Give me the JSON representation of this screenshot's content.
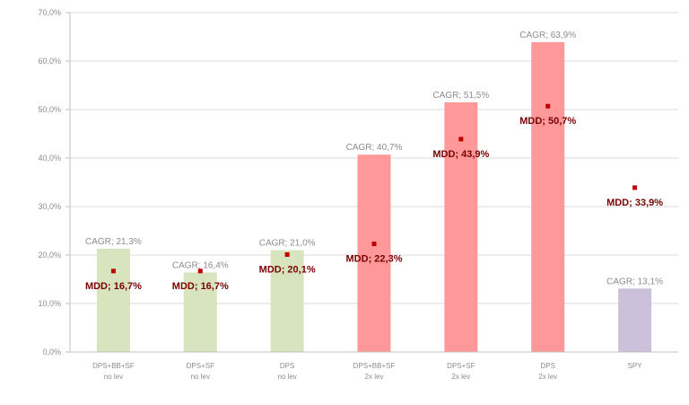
{
  "chart_data": {
    "type": "bar",
    "title": "",
    "xlabel": "",
    "ylabel": "",
    "ylim": [
      0,
      70
    ],
    "y_ticks": [
      "0,0%",
      "10,0%",
      "20,0%",
      "30,0%",
      "40,0%",
      "50,0%",
      "60,0%",
      "70,0%"
    ],
    "y_tick_values": [
      0,
      10,
      20,
      30,
      40,
      50,
      60,
      70
    ],
    "grid": true,
    "legend": "none",
    "categories": [
      [
        "DPS+BB+SF",
        "no lev"
      ],
      [
        "DPS+SF",
        "no lev"
      ],
      [
        "DPS",
        "no lev"
      ],
      [
        "DPS+BB+SF",
        "2x lev"
      ],
      [
        "DPS+SF",
        "2x lev"
      ],
      [
        "DPS",
        "2x lev"
      ],
      [
        "SPY"
      ]
    ],
    "series": [
      {
        "name": "",
        "values": [
          21.3,
          16.4,
          21.0,
          40.7,
          51.5,
          63.9,
          13.1
        ],
        "labels": [
          "CAGR; 21,3%",
          "CAGR; 16,4%",
          "CAGR; 21,0%",
          "CAGR; 40,7%",
          "CAGR; 51,5%",
          "CAGR; 63,9%",
          "CAGR; 13,1%"
        ],
        "colors": [
          "#d7e4bd",
          "#d7e4bd",
          "#d7e4bd",
          "#ff9999",
          "#ff9999",
          "#ff9999",
          "#ccc1da"
        ]
      },
      {
        "name": "",
        "values": [
          16.7,
          16.7,
          20.1,
          22.3,
          43.9,
          50.7,
          33.9
        ],
        "labels": [
          "MDD; 16,7%",
          "MDD; 16,7%",
          "MDD; 20,1%",
          "MDD; 22,3%",
          "MDD; 43,9%",
          "MDD; 50,7%",
          "MDD; 33,9%"
        ],
        "color": "#c00000"
      }
    ]
  }
}
